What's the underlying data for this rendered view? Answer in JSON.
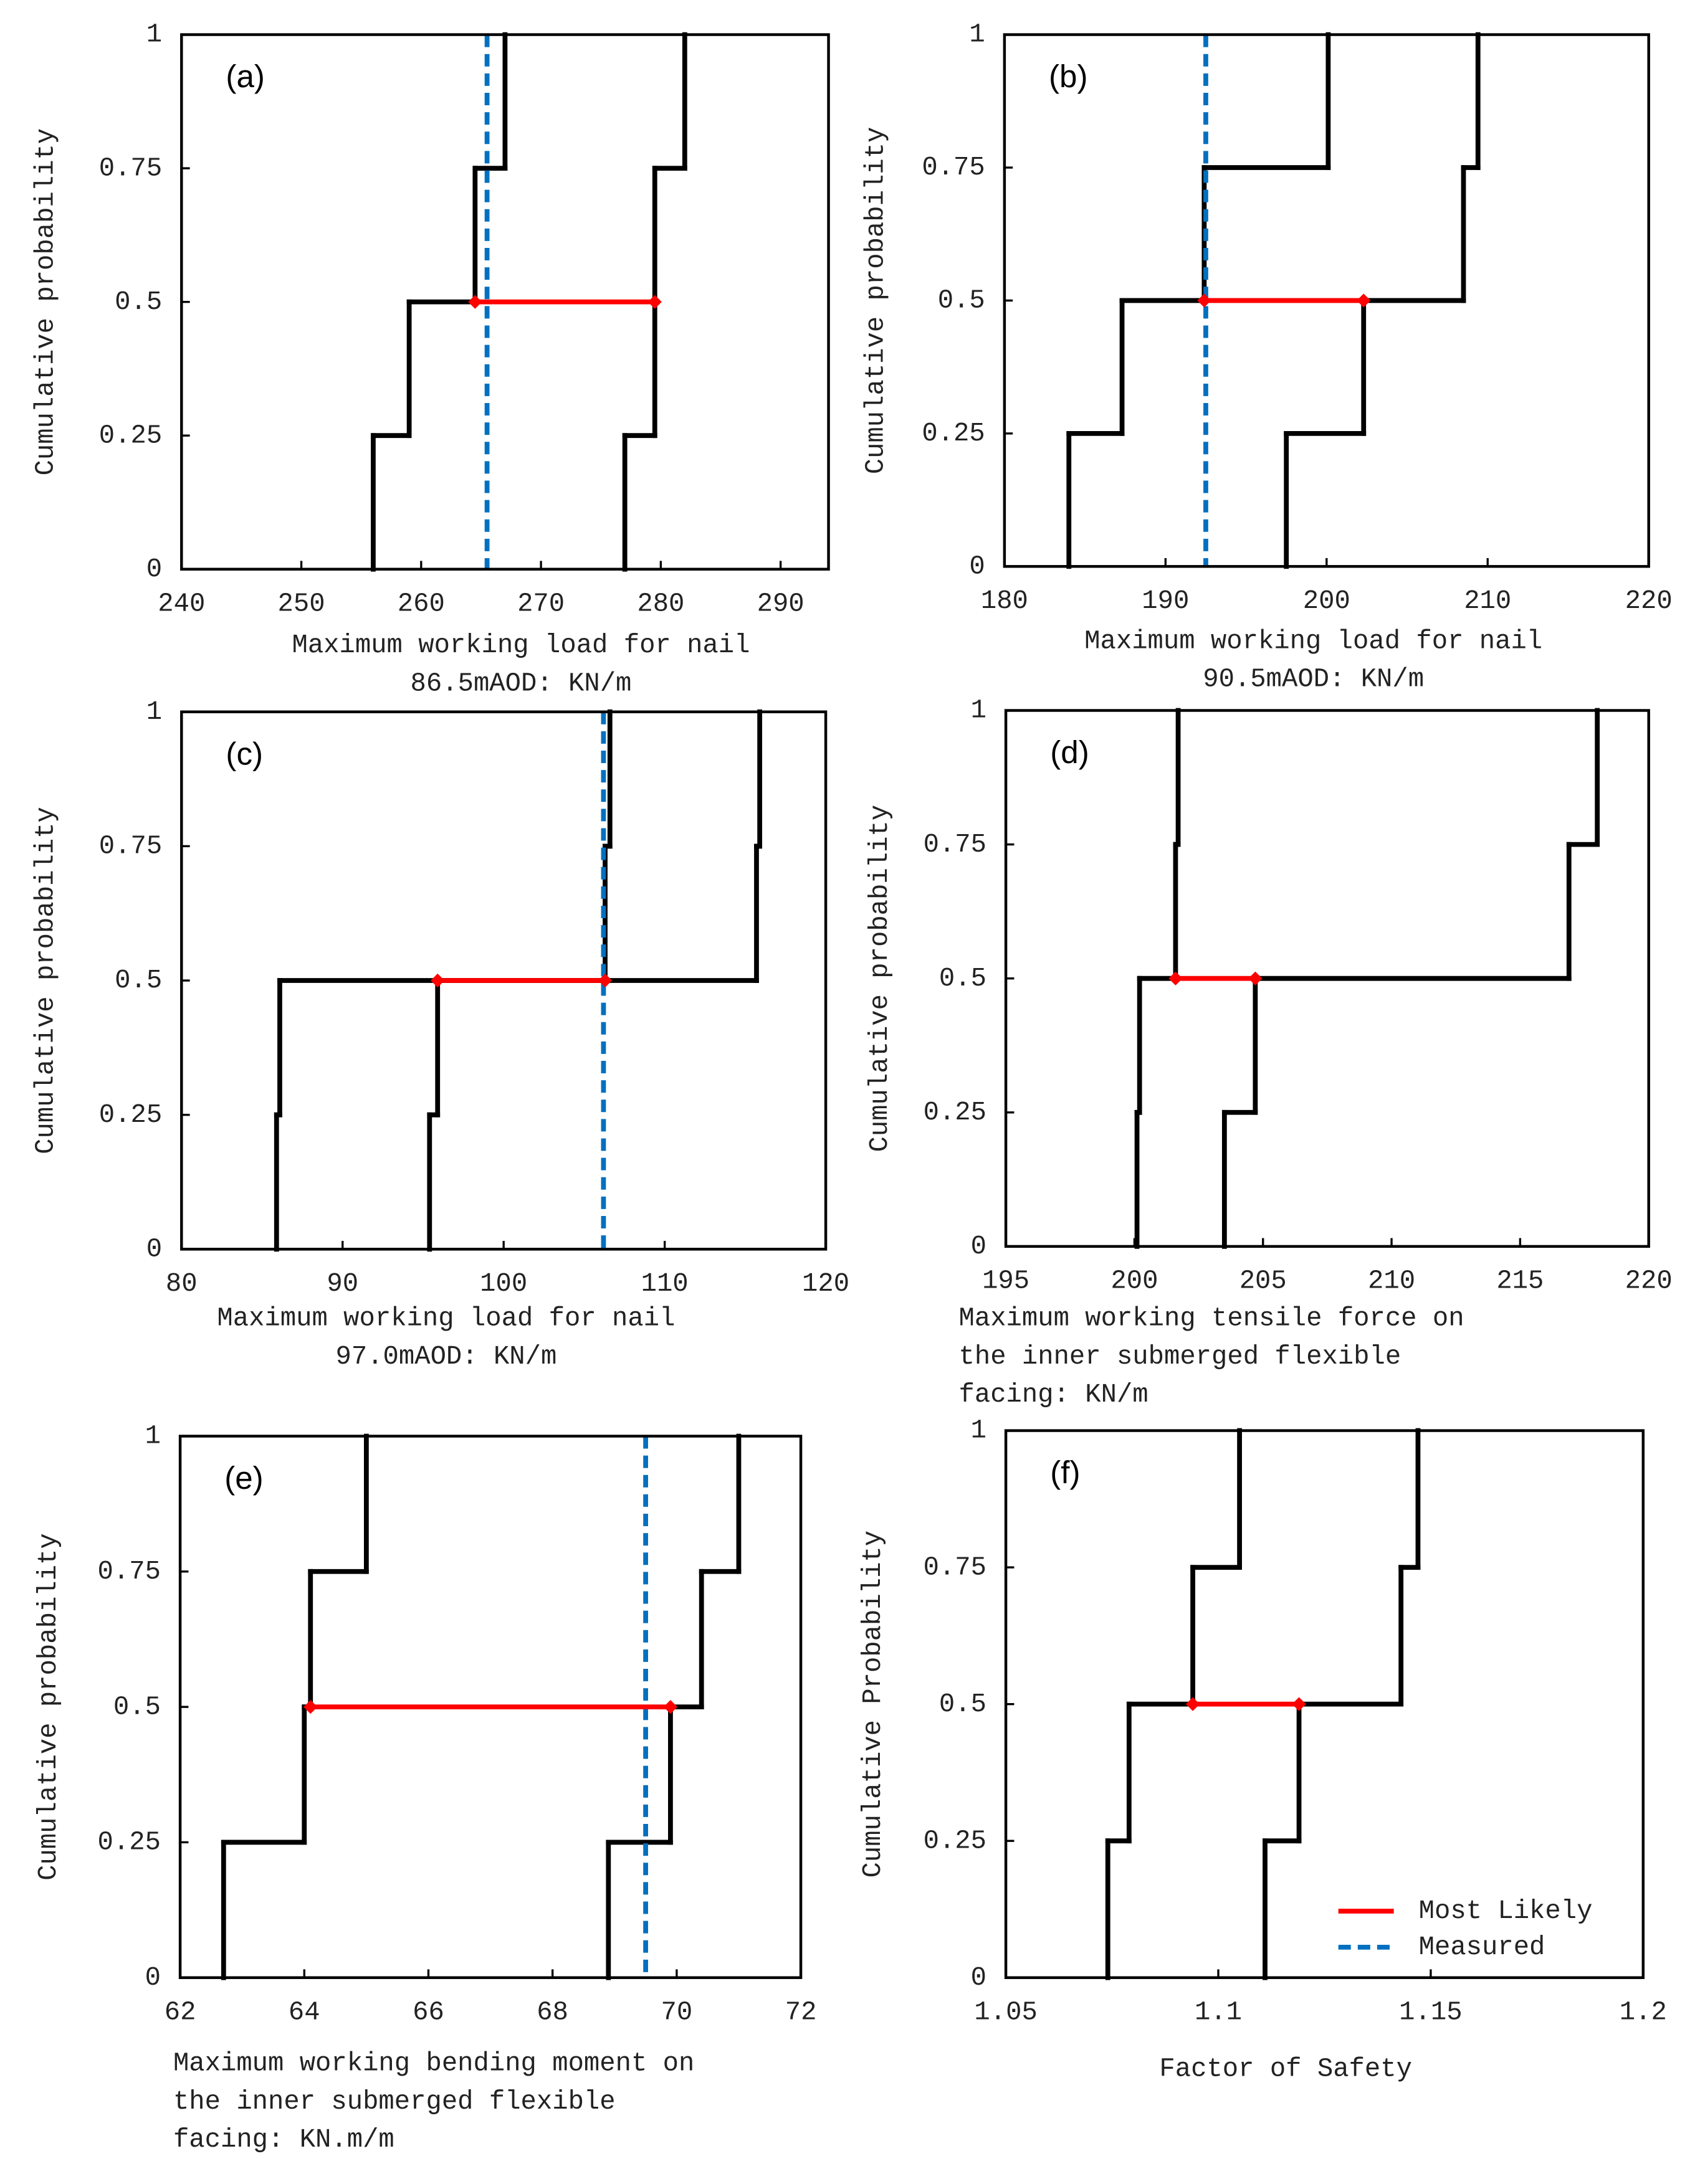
{
  "chart_data": [
    {
      "type": "line",
      "label": "(a)",
      "ylabel": "Cumulative probability",
      "xlabel": [
        "Maximum working load for nail",
        "86.5mAOD: KN/m"
      ],
      "xlim": [
        240,
        294
      ],
      "xticks": [
        240,
        250,
        260,
        270,
        280,
        290
      ],
      "ylim": [
        0,
        1
      ],
      "yticks": [
        0,
        0.25,
        0.5,
        0.75,
        1
      ],
      "levels": [
        0,
        0.25,
        0.5,
        0.75,
        1
      ],
      "bounds": [
        {
          "color": "#000000",
          "values": [
            256,
            259,
            264.5,
            267
          ]
        },
        {
          "color": "#000000",
          "values": [
            277,
            279.5,
            279.5,
            282
          ]
        }
      ],
      "most_likely": {
        "color": "#ff0000",
        "values": [
          264.5,
          279.5
        ],
        "y": 0.5
      },
      "measured": {
        "color": "#0070c0",
        "value": 265.5
      }
    },
    {
      "type": "line",
      "label": "(b)",
      "ylabel": "Cumulative probability",
      "xlabel": [
        "Maximum working load for nail",
        "90.5mAOD: KN/m"
      ],
      "xlim": [
        180,
        220
      ],
      "xticks": [
        180,
        190,
        200,
        210,
        220
      ],
      "ylim": [
        0,
        1
      ],
      "yticks": [
        0,
        0.25,
        0.5,
        0.75,
        1
      ],
      "levels": [
        0,
        0.25,
        0.5,
        0.75,
        1
      ],
      "bounds": [
        {
          "color": "#000000",
          "values": [
            184,
            187.3,
            192.4,
            200.1
          ]
        },
        {
          "color": "#000000",
          "values": [
            197.5,
            202.3,
            208.5,
            209.4
          ]
        }
      ],
      "most_likely": {
        "color": "#ff0000",
        "values": [
          192.4,
          202.3
        ],
        "y": 0.5
      },
      "measured": {
        "color": "#0070c0",
        "value": 192.5
      }
    },
    {
      "type": "line",
      "label": "(c)",
      "ylabel": "Cumulative probability",
      "xlabel": [
        "Maximum working load for nail",
        "97.0mAOD: KN/m"
      ],
      "xlim": [
        80,
        120
      ],
      "xticks": [
        80,
        90,
        100,
        110,
        120
      ],
      "ylim": [
        0,
        1
      ],
      "yticks": [
        0,
        0.25,
        0.5,
        0.75,
        1
      ],
      "levels": [
        0,
        0.25,
        0.5,
        0.75,
        1
      ],
      "bounds": [
        {
          "color": "#000000",
          "values": [
            85.9,
            86.1,
            106.3,
            106.6
          ]
        },
        {
          "color": "#000000",
          "values": [
            95.4,
            95.9,
            115.7,
            115.9
          ]
        }
      ],
      "most_likely": {
        "color": "#ff0000",
        "values": [
          95.9,
          106.3
        ],
        "y": 0.5
      },
      "measured": {
        "color": "#0070c0",
        "value": 106.2
      }
    },
    {
      "type": "line",
      "label": "(d)",
      "ylabel": "Cumulative probability",
      "xlabel": [
        "Maximum working tensile force on",
        "the inner submerged flexible",
        "facing: KN/m"
      ],
      "xlim": [
        195,
        220
      ],
      "xticks": [
        195,
        200,
        205,
        210,
        215,
        220
      ],
      "ylim": [
        0,
        1
      ],
      "yticks": [
        0,
        0.25,
        0.5,
        0.75,
        1
      ],
      "levels": [
        0,
        0.25,
        0.5,
        0.75,
        1
      ],
      "bounds": [
        {
          "color": "#000000",
          "values": [
            200.1,
            200.2,
            201.6,
            201.7
          ]
        },
        {
          "color": "#000000",
          "values": [
            203.5,
            204.7,
            216.9,
            218
          ]
        }
      ],
      "most_likely": {
        "color": "#ff0000",
        "values": [
          201.6,
          204.7
        ],
        "y": 0.5
      }
    },
    {
      "type": "line",
      "label": "(e)",
      "ylabel": "Cumulative probability",
      "xlabel": [
        "Maximum working bending moment on",
        "the inner submerged flexible",
        "facing: KN.m/m"
      ],
      "xlim": [
        62,
        72
      ],
      "xticks": [
        62,
        64,
        66,
        68,
        70,
        72
      ],
      "ylim": [
        0,
        1
      ],
      "yticks": [
        0,
        0.25,
        0.5,
        0.75,
        1
      ],
      "levels": [
        0,
        0.25,
        0.5,
        0.75,
        1
      ],
      "bounds": [
        {
          "color": "#000000",
          "values": [
            62.7,
            64,
            64.1,
            65
          ]
        },
        {
          "color": "#000000",
          "values": [
            68.9,
            69.9,
            70.4,
            71
          ]
        }
      ],
      "most_likely": {
        "color": "#ff0000",
        "values": [
          64.1,
          69.9
        ],
        "y": 0.5
      },
      "measured": {
        "color": "#0070c0",
        "value": 69.5
      }
    },
    {
      "type": "line",
      "label": "(f)",
      "ylabel": "Cumulative Probability",
      "xlabel": [
        "Factor of Safety"
      ],
      "xlim": [
        1.05,
        1.2
      ],
      "xticks": [
        1.05,
        1.1,
        1.15,
        1.2
      ],
      "ylim": [
        0,
        1
      ],
      "yticks": [
        0,
        0.25,
        0.5,
        0.75,
        1
      ],
      "levels": [
        0,
        0.25,
        0.5,
        0.75,
        1
      ],
      "bounds": [
        {
          "color": "#000000",
          "values": [
            1.074,
            1.079,
            1.094,
            1.105
          ]
        },
        {
          "color": "#000000",
          "values": [
            1.111,
            1.119,
            1.143,
            1.147
          ]
        }
      ],
      "most_likely": {
        "color": "#ff0000",
        "values": [
          1.094,
          1.119
        ],
        "y": 0.5
      },
      "legend": [
        {
          "name": "Most Likely",
          "color": "#ff0000"
        },
        {
          "name": "Measured",
          "color": "#0070c0",
          "dashed": true
        }
      ],
      "legend_position": "lower right"
    }
  ]
}
